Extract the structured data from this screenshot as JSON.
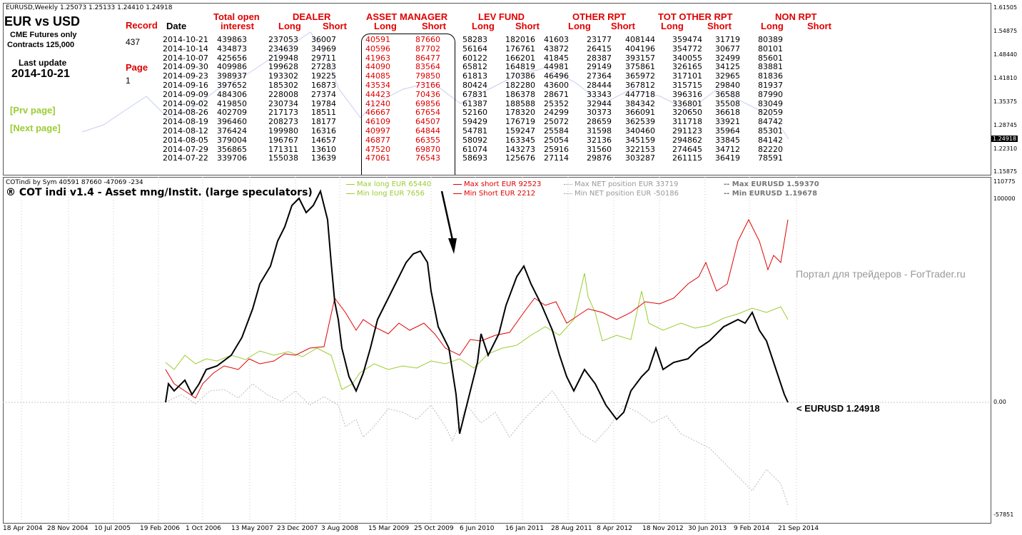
{
  "main_header": "EURUSD,Weekly  1.25073 1.25133 1.24410 1.24918",
  "left_panel": {
    "title": "EUR vs USD",
    "subtitle1": "CME Futures only",
    "subtitle2": "Contracts  125,000",
    "last_update_label": "Last update",
    "last_update_value": "2014-10-21",
    "record_label": "Record",
    "record_value": "437",
    "page_label": "Page",
    "page_value": "1",
    "prev_page": "[Prv page]",
    "next_page": "[Next page]"
  },
  "column_headers": {
    "date": "Date",
    "total_open_1": "Total open",
    "total_open_2": "interest",
    "dealer": "DEALER",
    "asset_manager": "ASSET MANAGER",
    "lev_fund": "LEV FUND",
    "other_rpt": "OTHER RPT",
    "tot_other_rpt": "TOT OTHER RPT",
    "non_rpt": "NON RPT",
    "long": "Long",
    "short": "Short"
  },
  "rows": [
    [
      "2014-10-21",
      "439863",
      "237053",
      "36007",
      "40591",
      "87660",
      "58283",
      "182016",
      "41603",
      "23177",
      "408144",
      "359474",
      "31719",
      "80389"
    ],
    [
      "2014-10-14",
      "434873",
      "234639",
      "34969",
      "40596",
      "87702",
      "56164",
      "176761",
      "43872",
      "26415",
      "404196",
      "354772",
      "30677",
      "80101"
    ],
    [
      "2014-10-07",
      "425656",
      "219948",
      "29711",
      "41963",
      "86477",
      "60122",
      "166201",
      "41845",
      "28387",
      "393157",
      "340055",
      "32499",
      "85601"
    ],
    [
      "2014-09-30",
      "409986",
      "199628",
      "27283",
      "44090",
      "83564",
      "65812",
      "164819",
      "44981",
      "29149",
      "375861",
      "326165",
      "34125",
      "83881"
    ],
    [
      "2014-09-23",
      "398937",
      "193302",
      "19225",
      "44085",
      "79850",
      "61813",
      "170386",
      "46496",
      "27364",
      "365972",
      "317101",
      "32965",
      "81836"
    ],
    [
      "2014-09-16",
      "397652",
      "185302",
      "16873",
      "43534",
      "73166",
      "80424",
      "182280",
      "43600",
      "28444",
      "367812",
      "315715",
      "29840",
      "81937"
    ],
    [
      "2014-09-09",
      "484306",
      "228008",
      "27374",
      "44423",
      "70436",
      "67831",
      "186378",
      "28671",
      "33343",
      "447718",
      "396316",
      "36588",
      "87990"
    ],
    [
      "2014-09-02",
      "419850",
      "230734",
      "19784",
      "41240",
      "69856",
      "61387",
      "188588",
      "25352",
      "32944",
      "384342",
      "336801",
      "35508",
      "83049"
    ],
    [
      "2014-08-26",
      "402709",
      "217173",
      "18511",
      "46667",
      "67654",
      "52160",
      "178320",
      "24299",
      "30373",
      "366091",
      "320650",
      "36618",
      "82059"
    ],
    [
      "2014-08-19",
      "396460",
      "208273",
      "18177",
      "46109",
      "64507",
      "59429",
      "176719",
      "25072",
      "28659",
      "362539",
      "311718",
      "33921",
      "84742"
    ],
    [
      "2014-08-12",
      "376424",
      "199980",
      "16316",
      "40997",
      "64844",
      "54781",
      "159247",
      "25584",
      "31598",
      "340460",
      "291123",
      "35964",
      "85301"
    ],
    [
      "2014-08-05",
      "379004",
      "196767",
      "14657",
      "46877",
      "66355",
      "58092",
      "163345",
      "25054",
      "32136",
      "345159",
      "294862",
      "33845",
      "84142"
    ],
    [
      "2014-07-29",
      "356865",
      "171311",
      "13610",
      "47520",
      "69870",
      "61074",
      "143273",
      "25916",
      "31560",
      "322153",
      "274645",
      "34712",
      "82220"
    ],
    [
      "2014-07-22",
      "339706",
      "155038",
      "13639",
      "47061",
      "76543",
      "58693",
      "125676",
      "27114",
      "29876",
      "303287",
      "261115",
      "36419",
      "78591"
    ]
  ],
  "price_scale": [
    "1.61505",
    "1.54875",
    "1.48440",
    "1.41810",
    "1.35375",
    "1.28745",
    "1.24918",
    "1.22310",
    "1.15875"
  ],
  "indicator": {
    "header": "COTindi by Sym 40591 87660 -47069 -234",
    "title": "® COT indi v1.4 - Asset mng/Instit. (large speculators)",
    "max_long": "Max long EUR  65440",
    "min_long": "Min long EUR  7656",
    "max_short": "Max short EUR  92523",
    "min_short": "Min Short EUR  2212",
    "max_net": "Max NET position EUR",
    "max_net_val": "33719",
    "min_net": "Min NET position EUR",
    "min_net_val": "-50186",
    "max_eurusd": "-- Max EURUSD  1.59370",
    "min_eurusd": "-- Min EURUSD  1.19678",
    "watermark": "Портал для трейдеров - ForTrader.ru",
    "eurusd_marker": "< EURUSD  1.24918",
    "scale": [
      "110775",
      "100000",
      "0.00",
      "-57851"
    ]
  },
  "dates": [
    "18 Apr 2004",
    "28 Nov 2004",
    "10 Jul 2005",
    "19 Feb 2006",
    "1 Oct 2006",
    "13 May 2007",
    "23 Dec 2007",
    "3 Aug 2008",
    "15 Mar 2009",
    "25 Oct 2009",
    "6 Jun 2010",
    "16 Jan 2011",
    "28 Aug 2011",
    "8 Apr 2012",
    "18 Nov 2012",
    "30 Jun 2013",
    "9 Feb 2014",
    "21 Sep 2014"
  ],
  "colors": {
    "accent_red": "#e00000",
    "green": "#9acd32",
    "gray": "#bbbbbb",
    "black": "#000000"
  }
}
